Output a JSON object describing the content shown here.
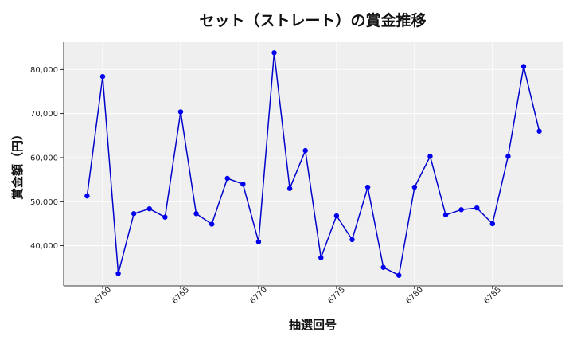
{
  "chart_data": {
    "type": "line",
    "title": "セット（ストレート）の賞金推移",
    "xlabel": "抽選回号",
    "ylabel": "賞金額（円）",
    "x": [
      6759,
      6760,
      6761,
      6762,
      6763,
      6764,
      6765,
      6766,
      6767,
      6768,
      6769,
      6770,
      6771,
      6772,
      6773,
      6774,
      6775,
      6776,
      6777,
      6778,
      6779,
      6780,
      6781,
      6782,
      6783,
      6784,
      6785,
      6786,
      6787,
      6788
    ],
    "y": [
      51300,
      78400,
      33700,
      47300,
      48400,
      46500,
      70400,
      47300,
      44900,
      55300,
      54000,
      40900,
      83800,
      53000,
      61600,
      37300,
      46800,
      41400,
      53300,
      35100,
      33300,
      53300,
      60300,
      47000,
      48200,
      48600,
      45000,
      60300,
      80700,
      66000
    ],
    "xlim": [
      6757.5,
      6789.5
    ],
    "ylim": [
      30900,
      86200
    ],
    "xticks": [
      6760,
      6765,
      6770,
      6775,
      6780,
      6785
    ],
    "xtick_labels": [
      "6760",
      "6765",
      "6770",
      "6775",
      "6780",
      "6785"
    ],
    "yticks": [
      40000,
      50000,
      60000,
      70000,
      80000
    ],
    "ytick_labels": [
      "40,000",
      "50,000",
      "60,000",
      "70,000",
      "80,000"
    ],
    "grid": true,
    "colors": {
      "line": "#0000cc",
      "marker": "#0000ee",
      "plot_bg": "#efefef",
      "grid": "#ffffff"
    }
  }
}
